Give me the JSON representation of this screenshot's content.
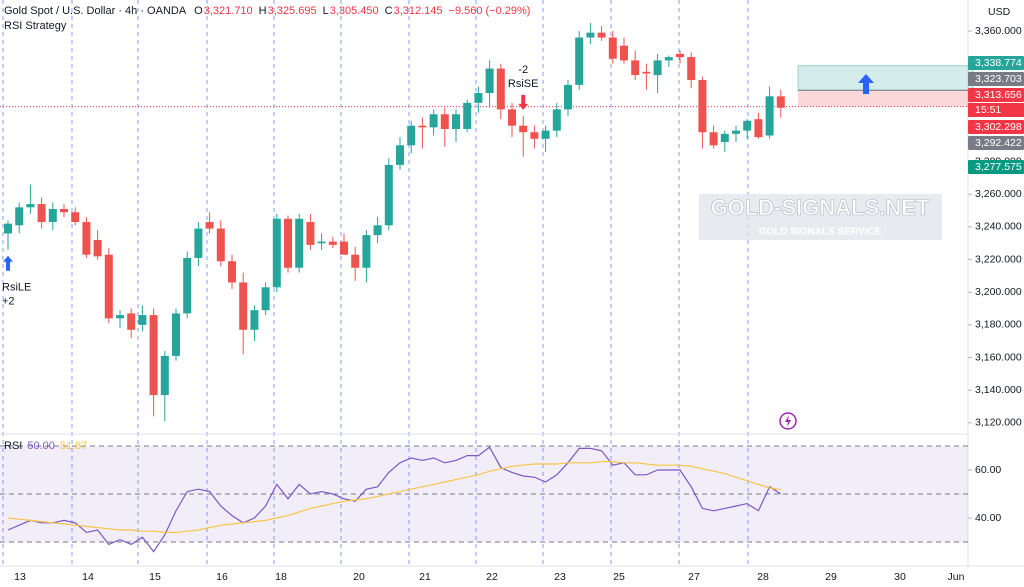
{
  "header": {
    "symbol": "Gold Spot / U.S. Dollar · 4h · OANDA",
    "ohlc": [
      [
        "O",
        "3,321.710"
      ],
      [
        "H",
        "3,325.695"
      ],
      [
        "L",
        "3,305.450"
      ],
      [
        "C",
        "3,312.145"
      ]
    ],
    "change": "−9.560 (−0.29%)",
    "strategy": "RSI Strategy",
    "currency": "USD"
  },
  "watermark": {
    "title": "GOLD-SIGNALS.NET",
    "subtitle": "GOLD SIGNALS SERVICE"
  },
  "price_tags": [
    {
      "value": 3338.774,
      "label": "3,338.774",
      "color": "#26a69a"
    },
    {
      "value": 3323.703,
      "label": "3,323.703",
      "color": "#787b86"
    },
    {
      "value": 3313.656,
      "label": "3,313.656",
      "color": "#f23645"
    },
    {
      "value": 3302.298,
      "label": "3,302.298",
      "color": "#f23645"
    },
    {
      "value": 3292.422,
      "label": "3,292.422",
      "color": "#787b86"
    },
    {
      "value": 3277.575,
      "label": "3,277.575",
      "color": "#089981"
    }
  ],
  "countdown": "15:51",
  "annotations": [
    {
      "text": "RsiLE",
      "qty": "+2",
      "direction": "up",
      "color": "#2962ff",
      "index": 0
    },
    {
      "text": "RsiSE",
      "qty": "-2",
      "direction": "down",
      "color": "#f23645",
      "index": 46
    }
  ],
  "x_labels": [
    "13",
    "14",
    "15",
    "16",
    "18",
    "20",
    "21",
    "22",
    "23",
    "25",
    "27",
    "28",
    "29",
    "30",
    "Jun"
  ],
  "chart_data": [
    {
      "type": "candlestick",
      "up_color": "#26a69a",
      "down_color": "#ef5350",
      "ylim": [
        3115,
        3379
      ],
      "yticks": [
        {
          "value": 3120,
          "label": "3,120.000"
        },
        {
          "value": 3140,
          "label": "3,140.000"
        },
        {
          "value": 3160,
          "label": "3,160.000"
        },
        {
          "value": 3180,
          "label": "3,180.000"
        },
        {
          "value": 3200,
          "label": "3,200.000"
        },
        {
          "value": 3220,
          "label": "3,220.000"
        },
        {
          "value": 3240,
          "label": "3,240.000"
        },
        {
          "value": 3260,
          "label": "3,260.000"
        },
        {
          "value": 3280,
          "label": "3,280.000"
        },
        {
          "value": 3300,
          "label": "3,300.000"
        },
        {
          "value": 3320,
          "label": "3,320.000"
        },
        {
          "value": 3340,
          "label": "3,340.000"
        },
        {
          "value": 3360,
          "label": "3,360.000"
        }
      ],
      "open": [
        3236,
        3241,
        3252,
        3254,
        3243,
        3251,
        3249,
        3243,
        3232,
        3223,
        3184,
        3187,
        3180,
        3186,
        3137,
        3161,
        3187,
        3221,
        3243,
        3239,
        3219,
        3206,
        3177,
        3189,
        3203,
        3245,
        3215,
        3243,
        3230,
        3231,
        3231,
        3223,
        3215,
        3235,
        3241,
        3278,
        3290,
        3302,
        3301,
        3309,
        3300,
        3300,
        3316,
        3322,
        3337,
        3312,
        3302,
        3298,
        3294,
        3299,
        3312,
        3327,
        3356,
        3359,
        3356,
        3351,
        3342,
        3335,
        3333,
        3342,
        3346,
        3344,
        3330,
        3298,
        3292,
        3297,
        3299,
        3306,
        3296,
        3320
      ],
      "high": [
        3244,
        3255,
        3266,
        3258,
        3255,
        3254,
        3252,
        3246,
        3238,
        3227,
        3189,
        3190,
        3192,
        3190,
        3164,
        3190,
        3225,
        3243,
        3249,
        3244,
        3223,
        3212,
        3192,
        3206,
        3248,
        3247,
        3248,
        3248,
        3236,
        3234,
        3236,
        3228,
        3238,
        3246,
        3282,
        3295,
        3305,
        3307,
        3312,
        3313,
        3312,
        3318,
        3326,
        3342,
        3340,
        3316,
        3308,
        3302,
        3302,
        3316,
        3330,
        3360,
        3365,
        3363,
        3360,
        3356,
        3348,
        3340,
        3346,
        3345,
        3348,
        3347,
        3332,
        3302,
        3299,
        3302,
        3306,
        3310,
        3326,
        3324
      ],
      "low": [
        3226,
        3236,
        3248,
        3239,
        3238,
        3246,
        3241,
        3221,
        3220,
        3181,
        3178,
        3172,
        3176,
        3124,
        3121,
        3158,
        3184,
        3216,
        3236,
        3216,
        3202,
        3162,
        3170,
        3186,
        3200,
        3212,
        3212,
        3226,
        3226,
        3227,
        3224,
        3207,
        3206,
        3230,
        3238,
        3275,
        3285,
        3288,
        3296,
        3289,
        3292,
        3298,
        3310,
        3313,
        3306,
        3295,
        3283,
        3288,
        3286,
        3295,
        3308,
        3324,
        3352,
        3354,
        3340,
        3340,
        3330,
        3324,
        3322,
        3338,
        3340,
        3325,
        3288,
        3288,
        3286,
        3292,
        3294,
        3294,
        3294,
        3307
      ],
      "close": [
        3242,
        3252,
        3254,
        3243,
        3251,
        3249,
        3243,
        3223,
        3222,
        3184,
        3186,
        3177,
        3186,
        3137,
        3161,
        3187,
        3221,
        3239,
        3239,
        3219,
        3206,
        3177,
        3189,
        3203,
        3245,
        3215,
        3245,
        3229,
        3231,
        3229,
        3223,
        3215,
        3235,
        3241,
        3278,
        3290,
        3302,
        3301,
        3309,
        3300,
        3309,
        3316,
        3322,
        3337,
        3312,
        3302,
        3298,
        3294,
        3299,
        3312,
        3327,
        3356,
        3359,
        3356,
        3343,
        3342,
        3333,
        3334,
        3342,
        3344,
        3344,
        3330,
        3298,
        3290,
        3297,
        3299,
        3305,
        3295,
        3320,
        3313
      ]
    },
    {
      "type": "line",
      "title": "RSI",
      "legend_values": [
        "50.00",
        "51.87"
      ],
      "ylim": [
        25,
        75
      ],
      "levels": [
        70,
        50,
        30
      ],
      "band_color": "#7e57c2",
      "yticks": [
        {
          "value": 40,
          "label": "40.00"
        },
        {
          "value": 60,
          "label": "60.00"
        }
      ],
      "series": [
        {
          "name": "RSI",
          "color": "#7e57c2",
          "values": [
            35,
            37,
            39,
            38,
            38,
            39,
            38,
            34,
            35,
            29,
            31,
            29,
            32,
            26,
            33,
            43,
            51,
            52,
            51,
            45,
            41,
            38,
            40,
            45,
            54,
            48,
            54,
            50,
            51,
            50,
            48,
            47,
            52,
            53,
            59,
            63,
            65,
            64,
            65,
            63,
            64,
            66,
            66,
            69.5,
            61,
            59,
            57.5,
            57,
            55,
            58,
            63,
            69,
            69,
            68,
            62,
            63,
            58,
            58,
            60,
            60,
            60,
            53,
            44,
            43,
            44,
            45,
            46,
            43,
            53,
            50
          ]
        },
        {
          "name": "RSI MA",
          "color": "#f7c548",
          "values": [
            40,
            39.5,
            39,
            38.5,
            38,
            37.5,
            37,
            36.5,
            36,
            35.5,
            35,
            35,
            34.5,
            34.5,
            34,
            34,
            34.5,
            35,
            36,
            37,
            37.5,
            38,
            38.5,
            39,
            40,
            41,
            42.5,
            44,
            45,
            46,
            47,
            47.5,
            48,
            49,
            50,
            51,
            52,
            53,
            54,
            55,
            56,
            57,
            58,
            59.5,
            60.5,
            61.5,
            62,
            62.5,
            62.5,
            62.5,
            63,
            63,
            63,
            63.5,
            63.5,
            63,
            63,
            62.5,
            62,
            62,
            62,
            61.5,
            60.5,
            59.5,
            58.5,
            57,
            55.5,
            54,
            52.5,
            51.87
          ]
        }
      ]
    }
  ]
}
